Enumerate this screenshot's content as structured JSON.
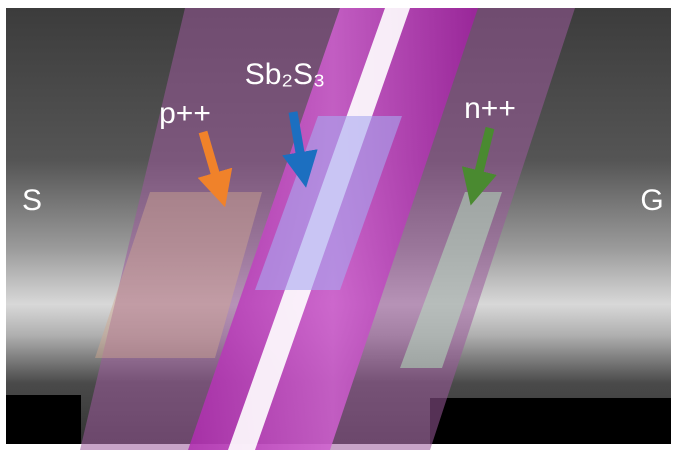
{
  "labels": {
    "source": "S",
    "gate": "G",
    "p_region": "p++",
    "channel": "Sb₂S₃",
    "n_region": "n++"
  }
}
